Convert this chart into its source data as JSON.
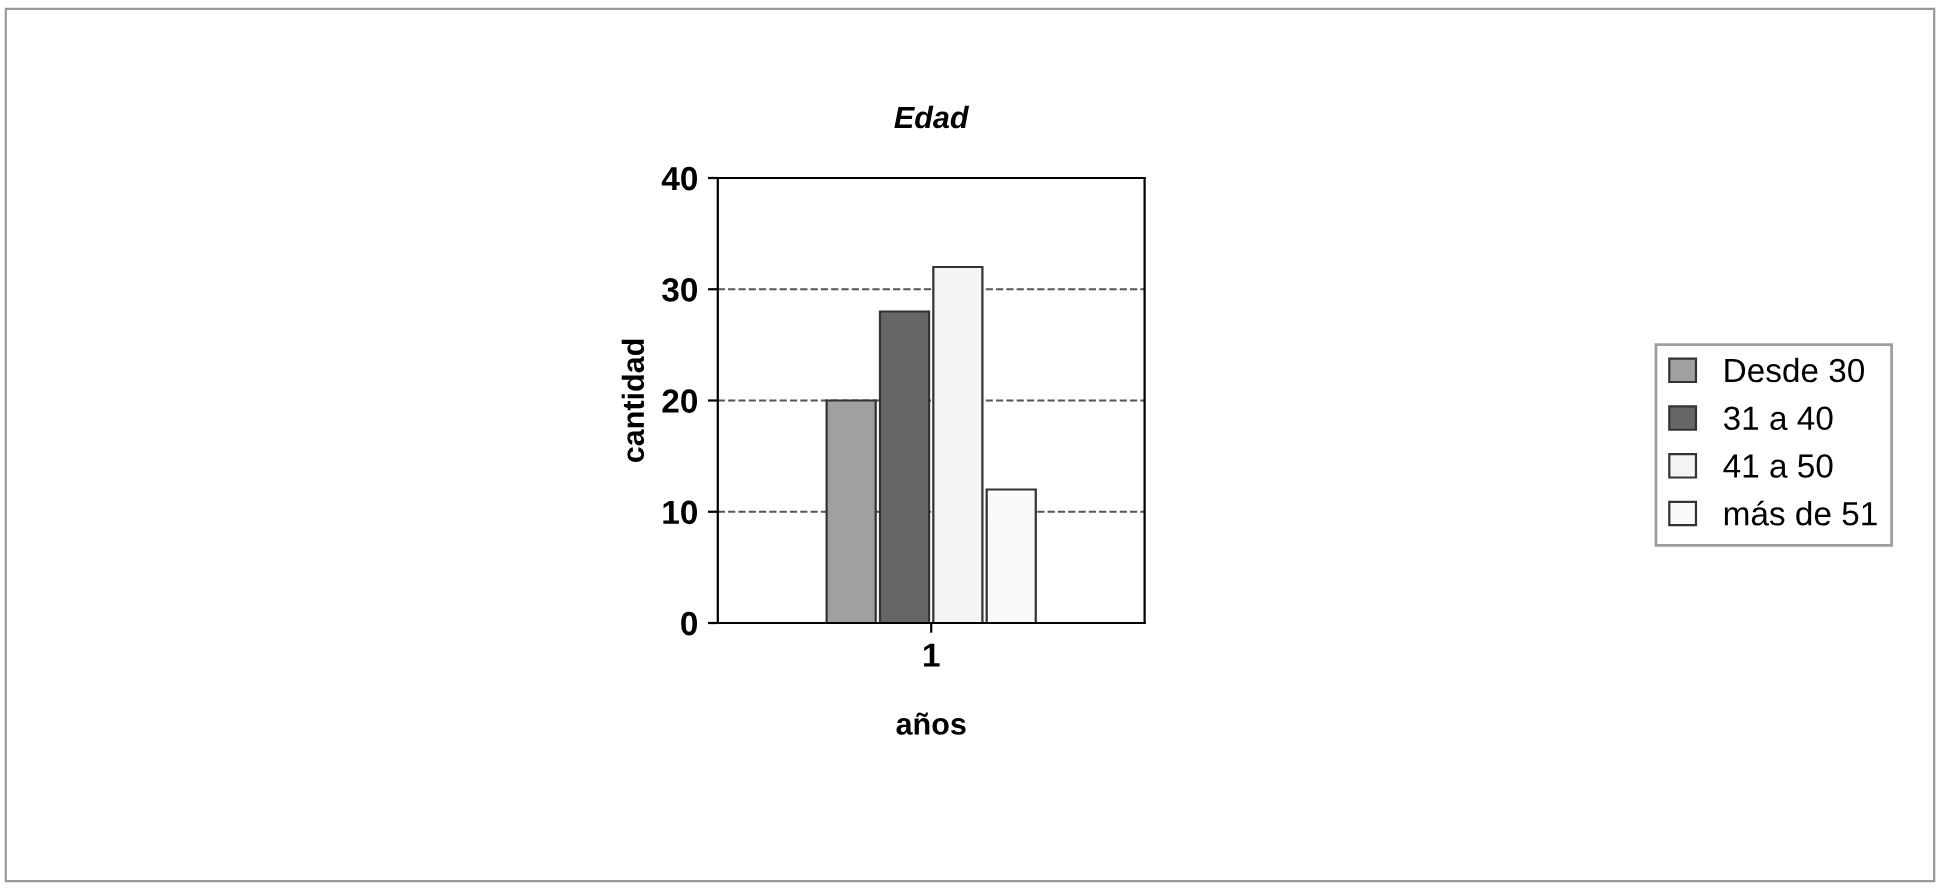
{
  "chart_data": {
    "type": "bar",
    "title": "Edad",
    "xlabel": "años",
    "ylabel": "cantidad",
    "categories": [
      "1"
    ],
    "series": [
      {
        "name": "Desde 30",
        "color": "#a0a0a0",
        "values": [
          20
        ]
      },
      {
        "name": "31 a 40",
        "color": "#666666",
        "values": [
          28
        ]
      },
      {
        "name": "41 a 50",
        "color": "#f4f4f4",
        "values": [
          32
        ]
      },
      {
        "name": "más de 51",
        "color": "#fafafa",
        "values": [
          12
        ]
      }
    ],
    "ylim": [
      0,
      40
    ],
    "yticks": [
      0,
      10,
      20,
      30,
      40
    ],
    "grid": "y",
    "legend": "right"
  }
}
